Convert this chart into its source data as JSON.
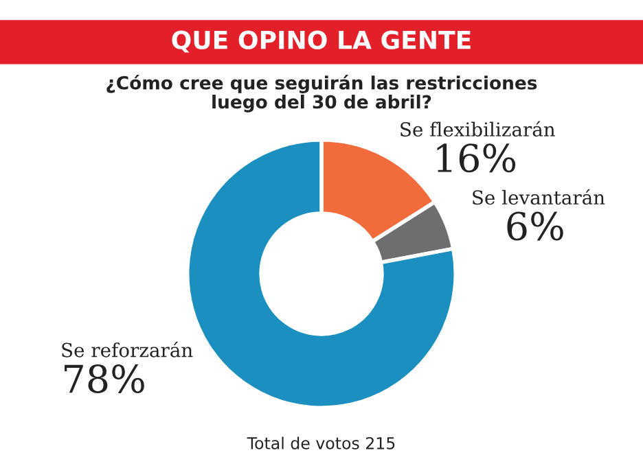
{
  "chart_data": {
    "type": "donut",
    "title": "QUE OPINO LA GENTE",
    "subtitle": "¿Cómo cree que seguirán las restricciones\nluego del 30 de abril?",
    "categories": [
      "Se flexibilizarán",
      "Se levantarán",
      "Se reforzarán"
    ],
    "values": [
      16,
      6,
      78
    ],
    "colors": [
      "#f26b3a",
      "#6d6e70",
      "#1a8fc0"
    ],
    "value_labels": [
      "16%",
      "6%",
      "78%"
    ],
    "annotations": [
      "Total de votos 215"
    ]
  }
}
